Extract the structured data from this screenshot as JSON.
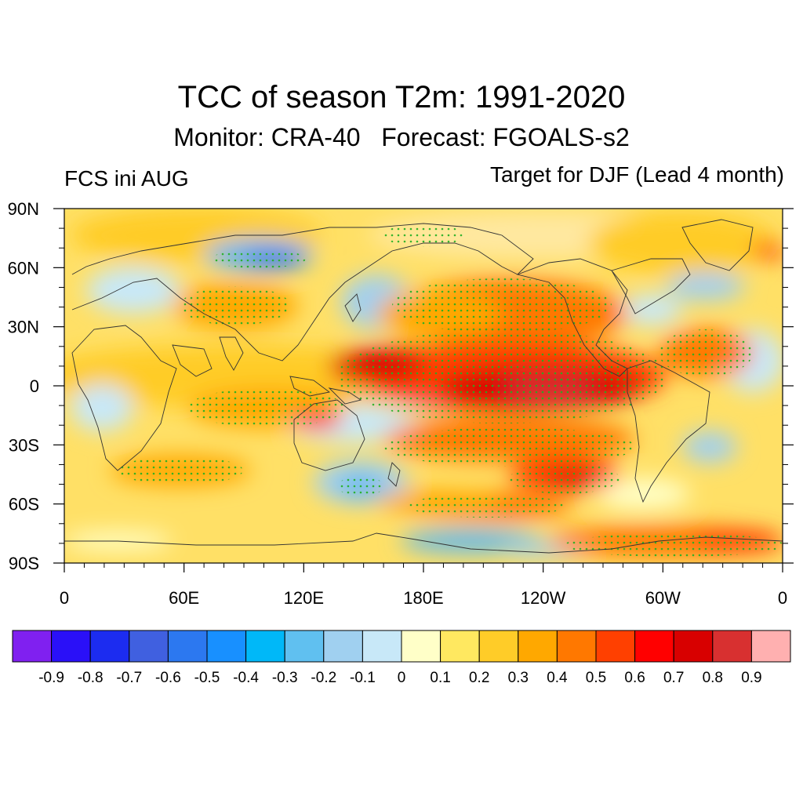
{
  "title": "TCC of season T2m: 1991-2020",
  "subtitle": "Monitor: CRA-40   Forecast: FGOALS-s2",
  "left_label": "FCS ini AUG",
  "right_label": "Target for DJF (Lead 4 month)",
  "axes": {
    "y_ticks": [
      "90N",
      "60N",
      "30N",
      "0",
      "30S",
      "60S",
      "90S"
    ],
    "x_ticks": [
      "0",
      "60E",
      "120E",
      "180E",
      "120W",
      "60W",
      "0"
    ]
  },
  "colorbar": {
    "labels": [
      "-0.9",
      "-0.8",
      "-0.7",
      "-0.6",
      "-0.5",
      "-0.4",
      "-0.3",
      "-0.2",
      "-0.1",
      "0",
      "0.1",
      "0.2",
      "0.3",
      "0.4",
      "0.5",
      "0.6",
      "0.7",
      "0.8",
      "0.9"
    ],
    "colors": [
      "#8020f0",
      "#2a10f8",
      "#1c2cf0",
      "#4060e0",
      "#2c78f0",
      "#1890ff",
      "#00b8f8",
      "#60c0f0",
      "#a0d0f0",
      "#c8e8f8",
      "#ffffc8",
      "#ffe860",
      "#ffcc28",
      "#ffa800",
      "#ff7800",
      "#ff4000",
      "#ff0000",
      "#d80000",
      "#d83030",
      "#ffb0b0"
    ]
  },
  "stipple_color": "#22b022"
}
